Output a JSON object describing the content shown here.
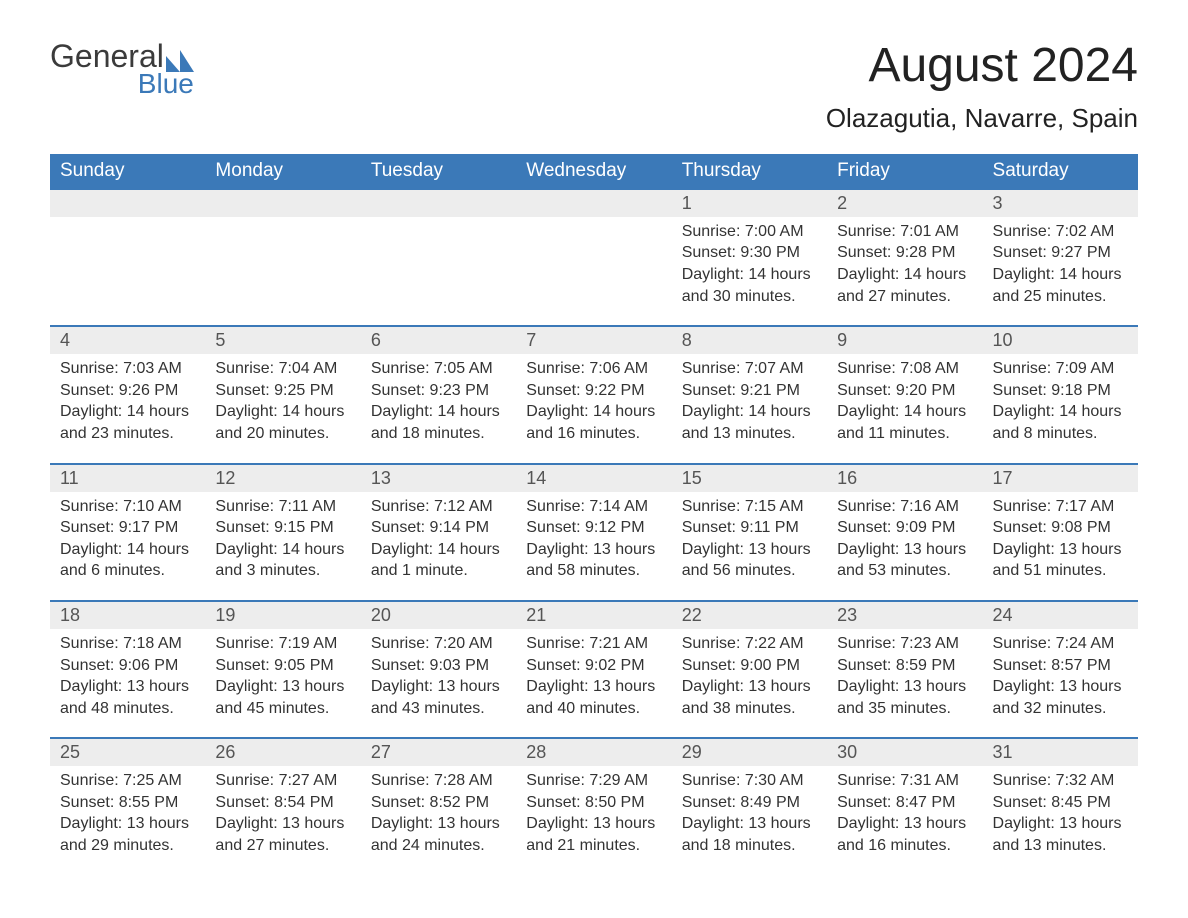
{
  "brand": {
    "line1": "General",
    "line2": "Blue",
    "logo_color": "#3b79b8",
    "text_color": "#3b3b3b"
  },
  "title": "August 2024",
  "location": "Olazagutia, Navarre, Spain",
  "colors": {
    "header_bg": "#3b79b8",
    "header_fg": "#ffffff",
    "daynum_bg": "#ededed",
    "row_border": "#3b79b8"
  },
  "weekdays": [
    "Sunday",
    "Monday",
    "Tuesday",
    "Wednesday",
    "Thursday",
    "Friday",
    "Saturday"
  ],
  "weeks": [
    [
      null,
      null,
      null,
      null,
      {
        "n": "1",
        "sunrise": "Sunrise: 7:00 AM",
        "sunset": "Sunset: 9:30 PM",
        "daylight": "Daylight: 14 hours and 30 minutes."
      },
      {
        "n": "2",
        "sunrise": "Sunrise: 7:01 AM",
        "sunset": "Sunset: 9:28 PM",
        "daylight": "Daylight: 14 hours and 27 minutes."
      },
      {
        "n": "3",
        "sunrise": "Sunrise: 7:02 AM",
        "sunset": "Sunset: 9:27 PM",
        "daylight": "Daylight: 14 hours and 25 minutes."
      }
    ],
    [
      {
        "n": "4",
        "sunrise": "Sunrise: 7:03 AM",
        "sunset": "Sunset: 9:26 PM",
        "daylight": "Daylight: 14 hours and 23 minutes."
      },
      {
        "n": "5",
        "sunrise": "Sunrise: 7:04 AM",
        "sunset": "Sunset: 9:25 PM",
        "daylight": "Daylight: 14 hours and 20 minutes."
      },
      {
        "n": "6",
        "sunrise": "Sunrise: 7:05 AM",
        "sunset": "Sunset: 9:23 PM",
        "daylight": "Daylight: 14 hours and 18 minutes."
      },
      {
        "n": "7",
        "sunrise": "Sunrise: 7:06 AM",
        "sunset": "Sunset: 9:22 PM",
        "daylight": "Daylight: 14 hours and 16 minutes."
      },
      {
        "n": "8",
        "sunrise": "Sunrise: 7:07 AM",
        "sunset": "Sunset: 9:21 PM",
        "daylight": "Daylight: 14 hours and 13 minutes."
      },
      {
        "n": "9",
        "sunrise": "Sunrise: 7:08 AM",
        "sunset": "Sunset: 9:20 PM",
        "daylight": "Daylight: 14 hours and 11 minutes."
      },
      {
        "n": "10",
        "sunrise": "Sunrise: 7:09 AM",
        "sunset": "Sunset: 9:18 PM",
        "daylight": "Daylight: 14 hours and 8 minutes."
      }
    ],
    [
      {
        "n": "11",
        "sunrise": "Sunrise: 7:10 AM",
        "sunset": "Sunset: 9:17 PM",
        "daylight": "Daylight: 14 hours and 6 minutes."
      },
      {
        "n": "12",
        "sunrise": "Sunrise: 7:11 AM",
        "sunset": "Sunset: 9:15 PM",
        "daylight": "Daylight: 14 hours and 3 minutes."
      },
      {
        "n": "13",
        "sunrise": "Sunrise: 7:12 AM",
        "sunset": "Sunset: 9:14 PM",
        "daylight": "Daylight: 14 hours and 1 minute."
      },
      {
        "n": "14",
        "sunrise": "Sunrise: 7:14 AM",
        "sunset": "Sunset: 9:12 PM",
        "daylight": "Daylight: 13 hours and 58 minutes."
      },
      {
        "n": "15",
        "sunrise": "Sunrise: 7:15 AM",
        "sunset": "Sunset: 9:11 PM",
        "daylight": "Daylight: 13 hours and 56 minutes."
      },
      {
        "n": "16",
        "sunrise": "Sunrise: 7:16 AM",
        "sunset": "Sunset: 9:09 PM",
        "daylight": "Daylight: 13 hours and 53 minutes."
      },
      {
        "n": "17",
        "sunrise": "Sunrise: 7:17 AM",
        "sunset": "Sunset: 9:08 PM",
        "daylight": "Daylight: 13 hours and 51 minutes."
      }
    ],
    [
      {
        "n": "18",
        "sunrise": "Sunrise: 7:18 AM",
        "sunset": "Sunset: 9:06 PM",
        "daylight": "Daylight: 13 hours and 48 minutes."
      },
      {
        "n": "19",
        "sunrise": "Sunrise: 7:19 AM",
        "sunset": "Sunset: 9:05 PM",
        "daylight": "Daylight: 13 hours and 45 minutes."
      },
      {
        "n": "20",
        "sunrise": "Sunrise: 7:20 AM",
        "sunset": "Sunset: 9:03 PM",
        "daylight": "Daylight: 13 hours and 43 minutes."
      },
      {
        "n": "21",
        "sunrise": "Sunrise: 7:21 AM",
        "sunset": "Sunset: 9:02 PM",
        "daylight": "Daylight: 13 hours and 40 minutes."
      },
      {
        "n": "22",
        "sunrise": "Sunrise: 7:22 AM",
        "sunset": "Sunset: 9:00 PM",
        "daylight": "Daylight: 13 hours and 38 minutes."
      },
      {
        "n": "23",
        "sunrise": "Sunrise: 7:23 AM",
        "sunset": "Sunset: 8:59 PM",
        "daylight": "Daylight: 13 hours and 35 minutes."
      },
      {
        "n": "24",
        "sunrise": "Sunrise: 7:24 AM",
        "sunset": "Sunset: 8:57 PM",
        "daylight": "Daylight: 13 hours and 32 minutes."
      }
    ],
    [
      {
        "n": "25",
        "sunrise": "Sunrise: 7:25 AM",
        "sunset": "Sunset: 8:55 PM",
        "daylight": "Daylight: 13 hours and 29 minutes."
      },
      {
        "n": "26",
        "sunrise": "Sunrise: 7:27 AM",
        "sunset": "Sunset: 8:54 PM",
        "daylight": "Daylight: 13 hours and 27 minutes."
      },
      {
        "n": "27",
        "sunrise": "Sunrise: 7:28 AM",
        "sunset": "Sunset: 8:52 PM",
        "daylight": "Daylight: 13 hours and 24 minutes."
      },
      {
        "n": "28",
        "sunrise": "Sunrise: 7:29 AM",
        "sunset": "Sunset: 8:50 PM",
        "daylight": "Daylight: 13 hours and 21 minutes."
      },
      {
        "n": "29",
        "sunrise": "Sunrise: 7:30 AM",
        "sunset": "Sunset: 8:49 PM",
        "daylight": "Daylight: 13 hours and 18 minutes."
      },
      {
        "n": "30",
        "sunrise": "Sunrise: 7:31 AM",
        "sunset": "Sunset: 8:47 PM",
        "daylight": "Daylight: 13 hours and 16 minutes."
      },
      {
        "n": "31",
        "sunrise": "Sunrise: 7:32 AM",
        "sunset": "Sunset: 8:45 PM",
        "daylight": "Daylight: 13 hours and 13 minutes."
      }
    ]
  ]
}
